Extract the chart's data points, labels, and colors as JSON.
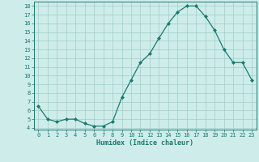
{
  "x": [
    0,
    1,
    2,
    3,
    4,
    5,
    6,
    7,
    8,
    9,
    10,
    11,
    12,
    13,
    14,
    15,
    16,
    17,
    18,
    19,
    20,
    21,
    22,
    23
  ],
  "y": [
    6.5,
    5.0,
    4.7,
    5.0,
    5.0,
    4.5,
    4.2,
    4.2,
    4.7,
    7.5,
    9.5,
    11.5,
    12.5,
    14.3,
    16.0,
    17.3,
    18.0,
    18.0,
    16.8,
    15.2,
    13.0,
    11.5,
    11.5,
    9.5
  ],
  "line_color": "#1a7a6e",
  "bg_color": "#ceecea",
  "grid_color": "#9ececa",
  "xlabel": "Humidex (Indice chaleur)",
  "ylabel_ticks": [
    4,
    5,
    6,
    7,
    8,
    9,
    10,
    11,
    12,
    13,
    14,
    15,
    16,
    17,
    18
  ],
  "xtick_labels": [
    "0",
    "1",
    "2",
    "3",
    "4",
    "5",
    "6",
    "7",
    "8",
    "9",
    "10",
    "11",
    "12",
    "13",
    "14",
    "15",
    "16",
    "17",
    "18",
    "19",
    "20",
    "21",
    "22",
    "23"
  ],
  "xlim": [
    -0.5,
    23.5
  ],
  "ylim": [
    3.8,
    18.5
  ]
}
